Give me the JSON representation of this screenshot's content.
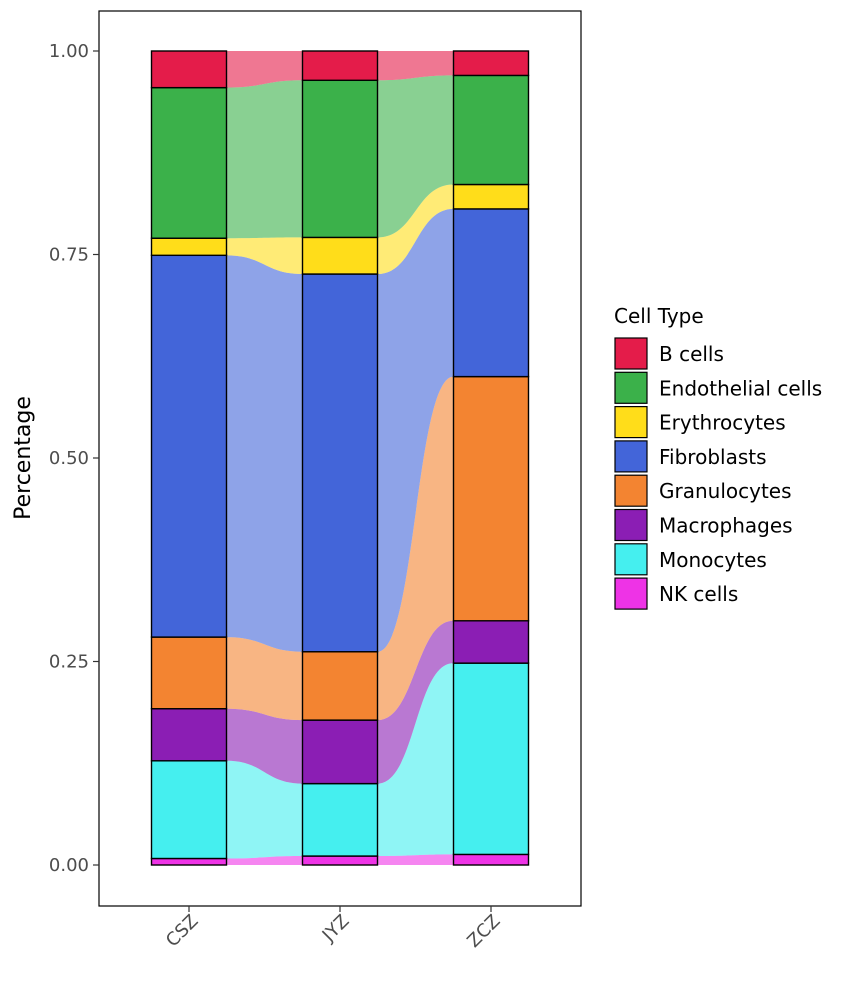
{
  "chart_data": {
    "type": "alluvial-stacked-bar",
    "title": "",
    "xlabel": "",
    "ylabel": "Percentage",
    "ylim": [
      0,
      1
    ],
    "yticks": [
      {
        "value": 0.0,
        "label": "0.00"
      },
      {
        "value": 0.25,
        "label": "0.25"
      },
      {
        "value": 0.5,
        "label": "0.50"
      },
      {
        "value": 0.75,
        "label": "0.75"
      },
      {
        "value": 1.0,
        "label": "1.00"
      }
    ],
    "categories": [
      "CSZ",
      "JYZ",
      "ZCZ"
    ],
    "legend": {
      "title": "Cell Type",
      "position": "right"
    },
    "series": [
      {
        "name": "NK cells",
        "color": "#EE33E6",
        "values": [
          0.008,
          0.011,
          0.013
        ]
      },
      {
        "name": "Monocytes",
        "color": "#45EFEF",
        "values": [
          0.12,
          0.089,
          0.235
        ]
      },
      {
        "name": "Macrophages",
        "color": "#8B1EB4",
        "values": [
          0.064,
          0.078,
          0.052
        ]
      },
      {
        "name": "Granulocytes",
        "color": "#F38431",
        "values": [
          0.088,
          0.084,
          0.3
        ]
      },
      {
        "name": "Fibroblasts",
        "color": "#4365D9",
        "values": [
          0.469,
          0.464,
          0.206
        ]
      },
      {
        "name": "Erythrocytes",
        "color": "#FFDD1A",
        "values": [
          0.021,
          0.045,
          0.03
        ]
      },
      {
        "name": "Endothelial cells",
        "color": "#3BB14A",
        "values": [
          0.185,
          0.193,
          0.134
        ]
      },
      {
        "name": "B cells",
        "color": "#E41C4A",
        "values": [
          0.045,
          0.036,
          0.03
        ]
      }
    ],
    "legend_order": [
      "B cells",
      "Endothelial cells",
      "Erythrocytes",
      "Fibroblasts",
      "Granulocytes",
      "Macrophages",
      "Monocytes",
      "NK cells"
    ]
  }
}
